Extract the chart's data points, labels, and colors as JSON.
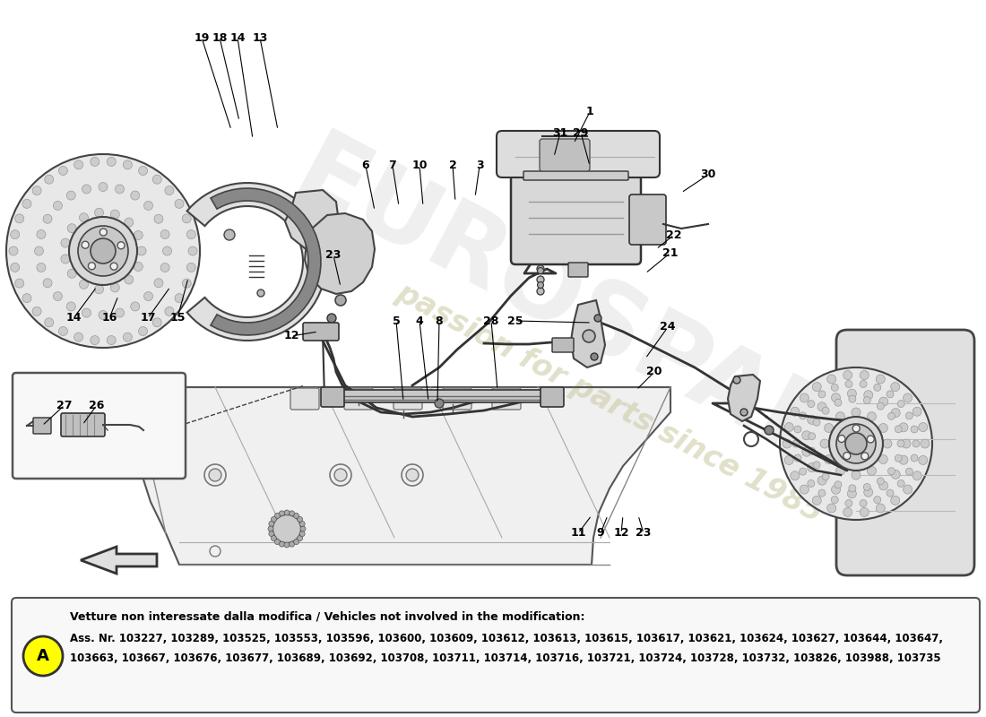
{
  "bg_color": "#ffffff",
  "watermark_text1": "EUROSPARES",
  "watermark_text2": "passion for parts since 1985",
  "note_title": "Vetture non interessate dalla modifica / Vehicles not involved in the modification:",
  "note_line1": "Ass. Nr. 103227, 103289, 103525, 103553, 103596, 103600, 103609, 103612, 103613, 103615, 103617, 103621, 103624, 103627, 103644, 103647,",
  "note_line2": "103663, 103667, 103676, 103677, 103689, 103692, 103708, 103711, 103714, 103716, 103721, 103724, 103728, 103732, 103826, 103988, 103735",
  "note_label": "A",
  "figsize": [
    11.0,
    8.0
  ],
  "dpi": 100
}
